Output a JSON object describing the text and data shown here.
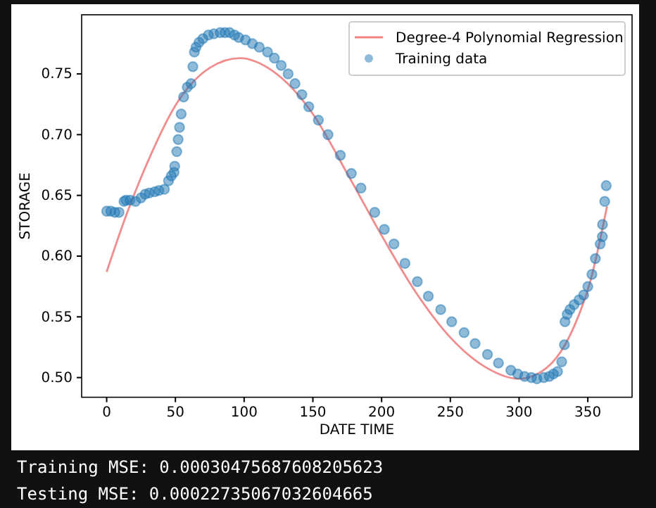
{
  "chart_data": {
    "type": "scatter",
    "xlabel": "DATE TIME",
    "ylabel": "STORAGE",
    "xlim": [
      -18.2,
      382.2
    ],
    "ylim": [
      0.4838,
      0.7987
    ],
    "xticks": [
      0,
      50,
      100,
      150,
      200,
      250,
      300,
      350
    ],
    "yticks": [
      {
        "value": 0.5,
        "label": "0.50"
      },
      {
        "value": 0.55,
        "label": "0.55"
      },
      {
        "value": 0.6,
        "label": "0.60"
      },
      {
        "value": 0.65,
        "label": "0.65"
      },
      {
        "value": 0.7,
        "label": "0.70"
      },
      {
        "value": 0.75,
        "label": "0.75"
      }
    ],
    "legend": "top right",
    "grid": false,
    "series": [
      {
        "name": "Degree-4 Polynomial Regression",
        "type": "line",
        "color": "#f08080",
        "line_style": "solid",
        "x": [
          0,
          15,
          30,
          50,
          75,
          97,
          120,
          150,
          175,
          200,
          225,
          250,
          275,
          300,
          320,
          340,
          352,
          364
        ],
        "values": [
          0.587,
          0.636,
          0.678,
          0.724,
          0.755,
          0.763,
          0.753,
          0.717,
          0.668,
          0.617,
          0.57,
          0.533,
          0.509,
          0.499,
          0.508,
          0.542,
          0.58,
          0.641
        ]
      },
      {
        "name": "Training data",
        "marker": "circle",
        "color": "#1f77b4",
        "x": [
          0,
          3,
          6,
          9,
          12.6,
          14,
          17,
          21,
          25,
          28,
          31,
          35,
          38,
          42,
          45,
          47,
          49,
          49.5,
          51,
          52,
          53,
          54.2,
          56,
          58.6,
          61.4,
          62.7,
          63.8,
          65,
          67.2,
          70,
          74,
          78,
          82.6,
          86,
          89.4,
          93,
          96,
          101,
          106,
          111,
          117,
          122,
          127,
          132,
          137,
          142,
          147,
          154,
          161,
          170,
          178,
          185,
          195,
          202,
          209,
          217,
          226,
          234,
          243,
          251,
          260,
          268,
          277,
          285,
          294,
          299,
          304,
          309,
          313,
          318,
          322,
          325,
          328,
          331,
          333,
          333.4,
          335,
          337,
          340,
          343.6,
          347,
          350,
          353,
          355.5,
          359,
          360.6,
          360.7,
          362.3,
          363.4
        ],
        "values": [
          0.637,
          0.637,
          0.636,
          0.636,
          0.645,
          0.646,
          0.646,
          0.645,
          0.648,
          0.651,
          0.652,
          0.653,
          0.654,
          0.655,
          0.662,
          0.666,
          0.669,
          0.674,
          0.686,
          0.696,
          0.706,
          0.717,
          0.731,
          0.739,
          0.742,
          0.756,
          0.768,
          0.772,
          0.776,
          0.779,
          0.782,
          0.783,
          0.784,
          0.784,
          0.784,
          0.782,
          0.78,
          0.778,
          0.775,
          0.772,
          0.768,
          0.763,
          0.757,
          0.75,
          0.742,
          0.733,
          0.723,
          0.712,
          0.7,
          0.683,
          0.668,
          0.656,
          0.636,
          0.622,
          0.61,
          0.594,
          0.579,
          0.567,
          0.556,
          0.546,
          0.537,
          0.528,
          0.519,
          0.512,
          0.506,
          0.503,
          0.501,
          0.5,
          0.499,
          0.5,
          0.501,
          0.503,
          0.505,
          0.513,
          0.527,
          0.546,
          0.552,
          0.556,
          0.56,
          0.564,
          0.568,
          0.575,
          0.585,
          0.598,
          0.61,
          0.616,
          0.626,
          0.645,
          0.658
        ]
      }
    ],
    "annotations": [
      "Training MSE: 0.00030475687608205623",
      "Testing MSE: 0.00022735067032604665"
    ]
  }
}
